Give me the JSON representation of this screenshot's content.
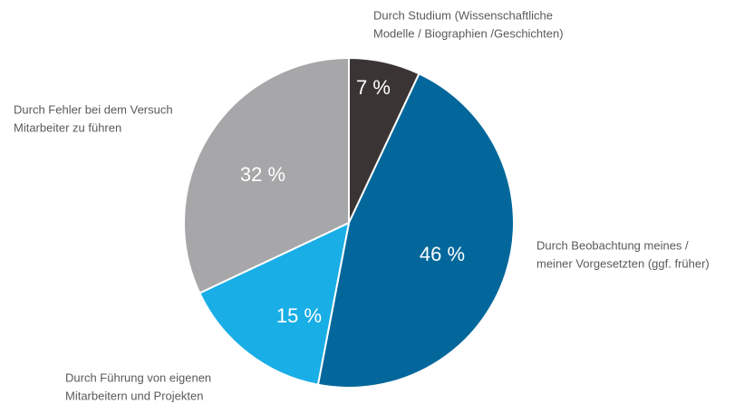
{
  "chart_data": {
    "type": "pie",
    "categories": [
      [
        "Durch Studium (Wissenschaftliche",
        "Modelle / Biographien /Geschichten)"
      ],
      [
        "Durch Beobachtung meines /",
        "meiner Vorgesetzten (ggf. früher)"
      ],
      [
        "Durch Führung von eigenen",
        "Mitarbeitern und Projekten"
      ],
      [
        "Durch Fehler bei dem Versuch",
        "Mitarbeiter zu führen"
      ]
    ],
    "values": [
      7,
      46,
      15,
      32
    ],
    "value_labels": [
      "7 %",
      "46 %",
      "15 %",
      "32 %"
    ],
    "colors": [
      "#3a3534",
      "#03679b",
      "#19aee6",
      "#a7a7a9"
    ]
  }
}
